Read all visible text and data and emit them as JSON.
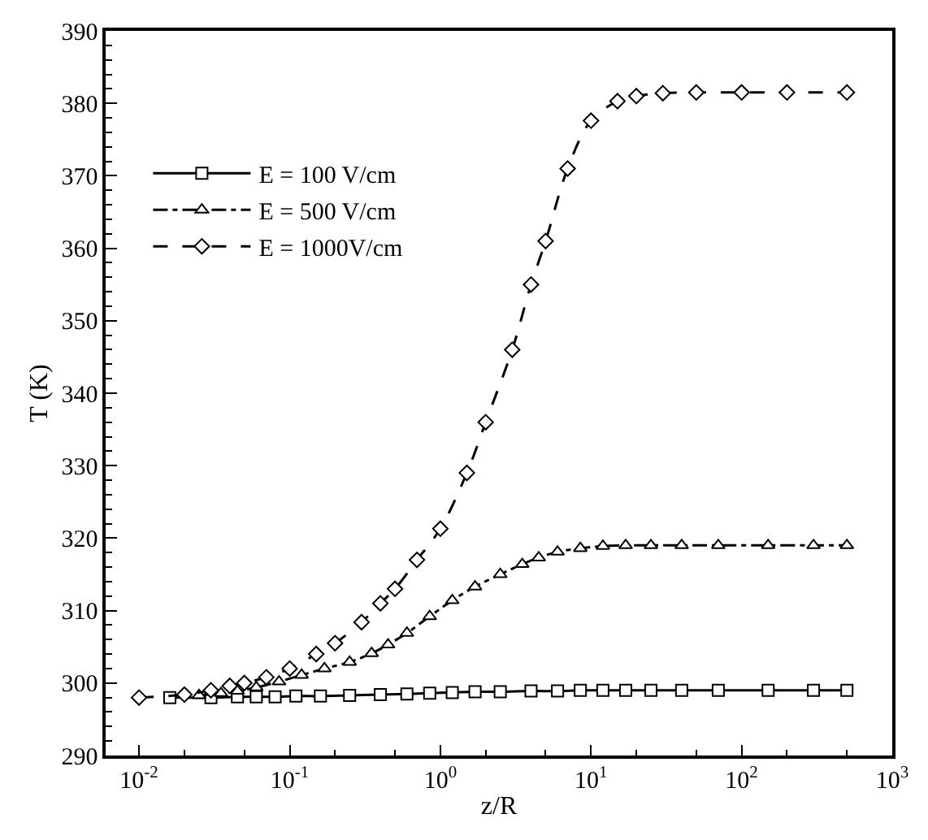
{
  "chart_data": {
    "type": "line",
    "xlabel": "z/R",
    "ylabel": "T (K)",
    "log": "x",
    "legend": "top left",
    "xlim": [
      0.006,
      1000
    ],
    "ylim": [
      290,
      390
    ],
    "xticks": [
      {
        "value": 0.01,
        "label": "10$^{-2}$"
      },
      {
        "value": 0.1,
        "label": "10$^{-1}$"
      },
      {
        "value": 1,
        "label": "10$^{0}$"
      },
      {
        "value": 10,
        "label": "10$^{1}$"
      },
      {
        "value": 100,
        "label": "10$^{2}$"
      },
      {
        "value": 1000,
        "label": "10$^{3}$"
      }
    ],
    "yticks": [
      290,
      300,
      310,
      320,
      330,
      340,
      350,
      360,
      370,
      380,
      390
    ],
    "series": [
      {
        "name": "E = 100 V/cm",
        "color": "#000000",
        "marker": "square",
        "line_style": "solid",
        "x": [
          0.016,
          0.03,
          0.045,
          0.06,
          0.08,
          0.11,
          0.16,
          0.25,
          0.4,
          0.6,
          0.85,
          1.2,
          1.7,
          2.5,
          4,
          6,
          8.5,
          12,
          17,
          25,
          40,
          70,
          150,
          300,
          500
        ],
        "values": [
          298,
          298,
          298.1,
          298.1,
          298.1,
          298.2,
          298.2,
          298.3,
          298.4,
          298.5,
          298.6,
          298.7,
          298.8,
          298.8,
          298.9,
          298.9,
          299,
          299,
          299,
          299,
          299,
          299,
          299,
          299,
          299
        ]
      },
      {
        "name": "E = 500 V/cm",
        "color": "#000000",
        "marker": "triangle",
        "line_style": "dashdot",
        "x": [
          0.025,
          0.035,
          0.045,
          0.06,
          0.085,
          0.12,
          0.17,
          0.25,
          0.35,
          0.45,
          0.6,
          0.85,
          1.2,
          1.7,
          2.5,
          3.5,
          4.5,
          6,
          8.5,
          12,
          17,
          25,
          40,
          70,
          150,
          300,
          500
        ],
        "values": [
          298.3,
          298.6,
          298.9,
          299.4,
          300.2,
          301.1,
          302,
          302.9,
          304.1,
          305.3,
          306.9,
          309.2,
          311.4,
          313.3,
          315,
          316.4,
          317.3,
          318.1,
          318.6,
          318.9,
          319,
          319,
          319,
          319,
          319,
          319,
          319
        ]
      },
      {
        "name": "E = 1000V/cm",
        "color": "#000000",
        "marker": "diamond",
        "line_style": "dashed",
        "x": [
          0.01,
          0.02,
          0.03,
          0.04,
          0.05,
          0.07,
          0.1,
          0.15,
          0.2,
          0.3,
          0.4,
          0.5,
          0.7,
          1,
          1.5,
          2,
          3,
          4,
          5,
          7,
          10,
          15,
          20,
          30,
          50,
          100,
          200,
          500
        ],
        "values": [
          298,
          298.4,
          299,
          299.6,
          300,
          300.8,
          302,
          304,
          305.5,
          308.4,
          311,
          313,
          317,
          321.3,
          329,
          336,
          346,
          355,
          361,
          371,
          377.6,
          380.3,
          381,
          381.4,
          381.5,
          381.5,
          381.5,
          381.5
        ]
      }
    ]
  }
}
